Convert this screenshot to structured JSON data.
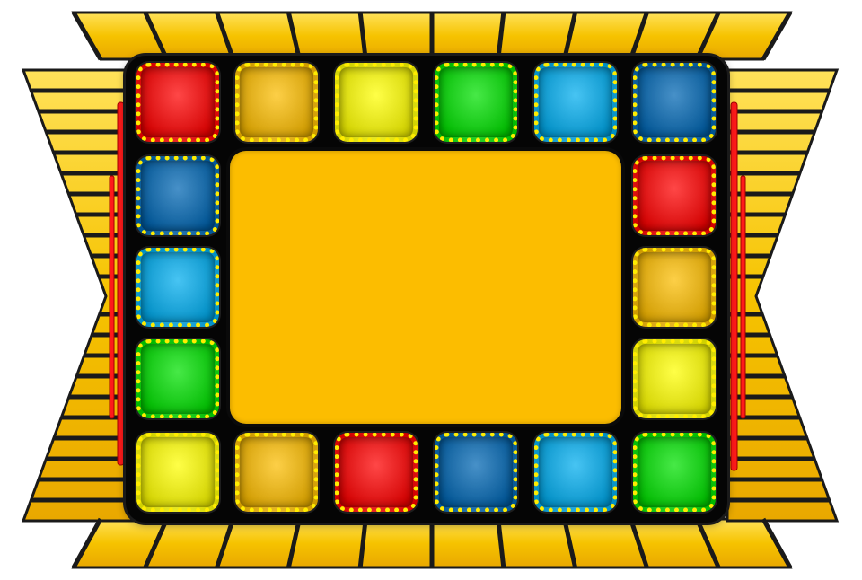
{
  "game": {
    "board_colors": {
      "red": "#ff0000",
      "orange": "#fcbd00",
      "yellow": "#ffff00",
      "green": "#00e100",
      "cyan": "#00adef",
      "blue": "#0066b3"
    },
    "tiles": {
      "top": [
        "red",
        "orange",
        "yellow",
        "green",
        "cyan",
        "blue"
      ],
      "left": [
        "blue",
        "cyan",
        "green"
      ],
      "right": [
        "red",
        "orange",
        "yellow"
      ],
      "bottom": [
        "yellow",
        "orange",
        "red",
        "blue",
        "cyan",
        "green"
      ]
    },
    "screen": {
      "text": "",
      "color": "#fcbd00"
    },
    "marquee_light_color": "#ffec00",
    "side_bar_color": "#ff1a1a",
    "backdrop_panel_color": "#f5c800"
  }
}
